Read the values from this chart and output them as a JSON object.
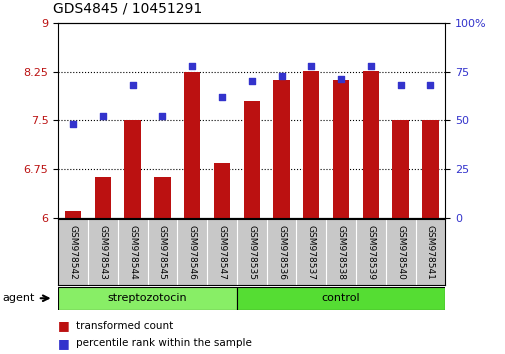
{
  "title": "GDS4845 / 10451291",
  "samples": [
    "GSM978542",
    "GSM978543",
    "GSM978544",
    "GSM978545",
    "GSM978546",
    "GSM978547",
    "GSM978535",
    "GSM978536",
    "GSM978537",
    "GSM978538",
    "GSM978539",
    "GSM978540",
    "GSM978541"
  ],
  "transformed_count": [
    6.1,
    6.62,
    7.5,
    6.62,
    8.25,
    6.85,
    7.8,
    8.12,
    8.26,
    8.12,
    8.26,
    7.5,
    7.5
  ],
  "percentile_rank": [
    48,
    52,
    68,
    52,
    78,
    62,
    70,
    73,
    78,
    71,
    78,
    68,
    68
  ],
  "bar_color": "#bb1111",
  "dot_color": "#3333cc",
  "ylim_left": [
    6,
    9
  ],
  "ylim_right": [
    0,
    100
  ],
  "yticks_left": [
    6,
    6.75,
    7.5,
    8.25,
    9
  ],
  "yticks_right": [
    0,
    25,
    50,
    75,
    100
  ],
  "ytick_labels_right": [
    "0",
    "25",
    "50",
    "75",
    "100%"
  ],
  "hlines": [
    6.75,
    7.5,
    8.25
  ],
  "groups": [
    {
      "label": "streptozotocin",
      "start": 0,
      "end": 6,
      "color": "#88ee66"
    },
    {
      "label": "control",
      "start": 6,
      "end": 13,
      "color": "#55dd33"
    }
  ],
  "agent_label": "agent",
  "legend": [
    {
      "label": "transformed count",
      "color": "#bb1111"
    },
    {
      "label": "percentile rank within the sample",
      "color": "#3333cc"
    }
  ],
  "background_color": "#ffffff",
  "tick_label_area_color": "#c8c8c8",
  "title_fontsize": 10,
  "axis_fontsize": 8,
  "bar_width": 0.55
}
